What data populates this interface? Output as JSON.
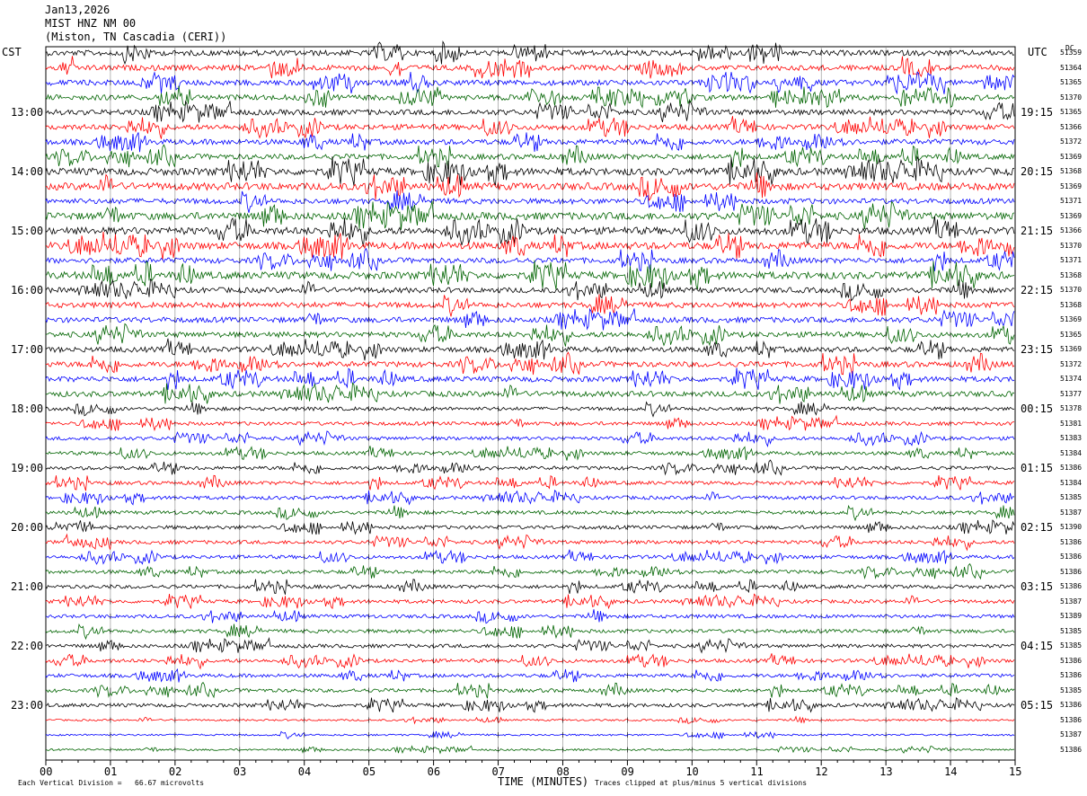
{
  "header": {
    "date": "Jan13,2026",
    "station": "MIST HNZ NM 00",
    "location": "(Miston, TN Cascadia (CERI))"
  },
  "left_tz": "CST",
  "right_tz": "UTC",
  "dc_header": "DC",
  "xlabel": "TIME (MINUTES)",
  "footer_left": "Each Vertical Division =   66.67 microvolts",
  "footer_right": "Traces clipped at plus/minus 5 vertical divisions",
  "colors": {
    "black": "#000000",
    "red": "#ff0000",
    "blue": "#0000ff",
    "green": "#006400"
  },
  "chart_data": {
    "type": "line",
    "title": "MIST HNZ NM 00",
    "xlabel": "TIME (MINUTES)",
    "x_ticks": [
      "00",
      "01",
      "02",
      "03",
      "04",
      "05",
      "06",
      "07",
      "08",
      "09",
      "10",
      "11",
      "12",
      "13",
      "14",
      "15"
    ],
    "xlim": [
      0,
      15
    ],
    "hour_labels_cst": [
      "13:00",
      "14:00",
      "15:00",
      "16:00",
      "17:00",
      "18:00",
      "19:00",
      "20:00",
      "21:00",
      "22:00",
      "23:00"
    ],
    "hour_labels_utc": [
      "19:15",
      "20:15",
      "21:15",
      "22:15",
      "23:15",
      "00:15",
      "01:15",
      "02:15",
      "03:15",
      "04:15",
      "05:15"
    ],
    "trace_colors": [
      "black",
      "red",
      "blue",
      "green"
    ],
    "dc_offsets": [
      51359,
      51364,
      51365,
      51370,
      51365,
      51366,
      51372,
      51369,
      51368,
      51369,
      51371,
      51369,
      51366,
      51370,
      51371,
      51368,
      51370,
      51368,
      51369,
      51365,
      51369,
      51372,
      51374,
      51377,
      51378,
      51381,
      51383,
      51384,
      51386,
      51384,
      51385,
      51387,
      51390,
      51386,
      51386,
      51386,
      51386,
      51387,
      51389,
      51385,
      51385,
      51386,
      51386,
      51385,
      51386,
      51386,
      51387,
      51386
    ],
    "trace_amplitude": [
      3,
      3,
      3,
      3,
      3,
      3,
      3,
      3,
      4,
      4,
      3,
      4,
      4,
      4,
      3,
      4,
      3,
      3,
      3,
      3,
      3,
      3,
      3,
      3,
      2,
      2,
      2,
      2,
      2,
      2,
      2,
      2,
      2,
      2,
      2,
      2,
      2,
      2,
      2,
      2,
      2,
      2,
      2,
      2,
      2,
      1,
      1,
      1
    ]
  }
}
